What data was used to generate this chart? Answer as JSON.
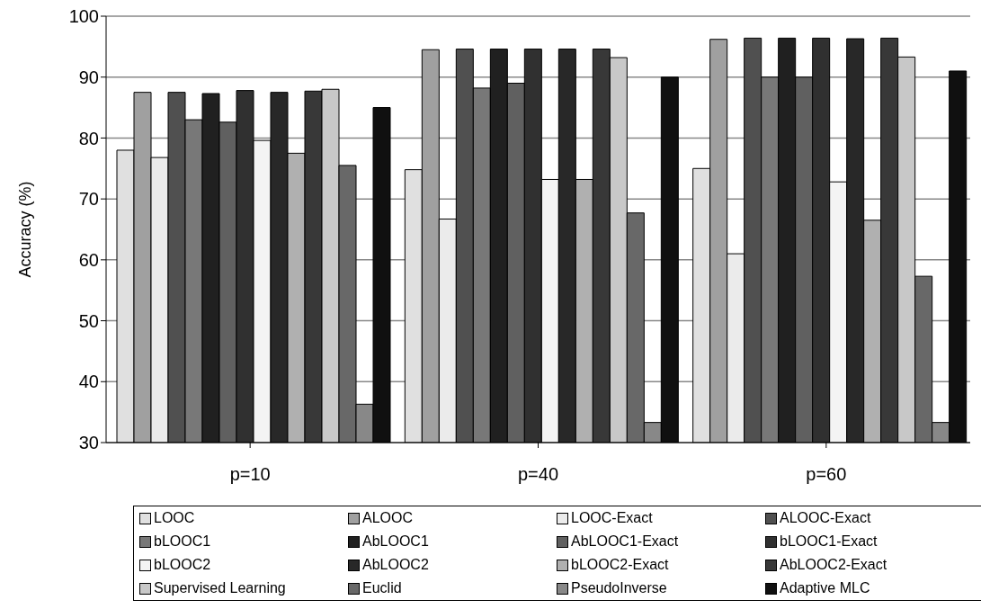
{
  "chart_data": {
    "type": "bar",
    "ylabel": "Accuracy (%)",
    "categories": [
      "p=10",
      "p=40",
      "p=60"
    ],
    "ylim": [
      30,
      100
    ],
    "yticks": [
      30,
      40,
      50,
      60,
      70,
      80,
      90,
      100
    ],
    "grid": "y",
    "legend": "bottom",
    "series": [
      {
        "name": "LOOC",
        "color": "#e0e0e0",
        "values": [
          78,
          74.8,
          75
        ]
      },
      {
        "name": "ALOOC",
        "color": "#a0a0a0",
        "values": [
          87.5,
          94.5,
          96.2
        ]
      },
      {
        "name": "LOOC-Exact",
        "color": "#ebebeb",
        "values": [
          76.8,
          66.7,
          61
        ]
      },
      {
        "name": "ALOOC-Exact",
        "color": "#505050",
        "values": [
          87.5,
          94.6,
          96.4
        ]
      },
      {
        "name": "bLOOC1",
        "color": "#787878",
        "values": [
          83,
          88.2,
          90
        ]
      },
      {
        "name": "AbLOOC1",
        "color": "#202020",
        "values": [
          87.3,
          94.6,
          96.4
        ]
      },
      {
        "name": "AbLOOC1-Exact",
        "color": "#606060",
        "values": [
          82.6,
          89,
          90
        ]
      },
      {
        "name": "bLOOC1-Exact",
        "color": "#303030",
        "values": [
          87.8,
          94.6,
          96.4
        ]
      },
      {
        "name": "bLOOC2",
        "color": "#f4f4f4",
        "values": [
          79.6,
          73.2,
          72.8
        ]
      },
      {
        "name": "AbLOOC2",
        "color": "#282828",
        "values": [
          87.5,
          94.6,
          96.3
        ]
      },
      {
        "name": "bLOOC2-Exact",
        "color": "#b0b0b0",
        "values": [
          77.5,
          73.2,
          66.5
        ]
      },
      {
        "name": "AbLOOC2-Exact",
        "color": "#383838",
        "values": [
          87.7,
          94.6,
          96.4
        ]
      },
      {
        "name": "Supervised Learning",
        "color": "#c8c8c8",
        "values": [
          88,
          93.2,
          93.3
        ]
      },
      {
        "name": "Euclid",
        "color": "#686868",
        "values": [
          75.5,
          67.7,
          57.3
        ]
      },
      {
        "name": "PseudoInverse",
        "color": "#888888",
        "values": [
          36.3,
          33.3,
          33.3
        ]
      },
      {
        "name": "Adaptive MLC",
        "color": "#101010",
        "values": [
          85,
          90,
          91
        ]
      }
    ]
  }
}
